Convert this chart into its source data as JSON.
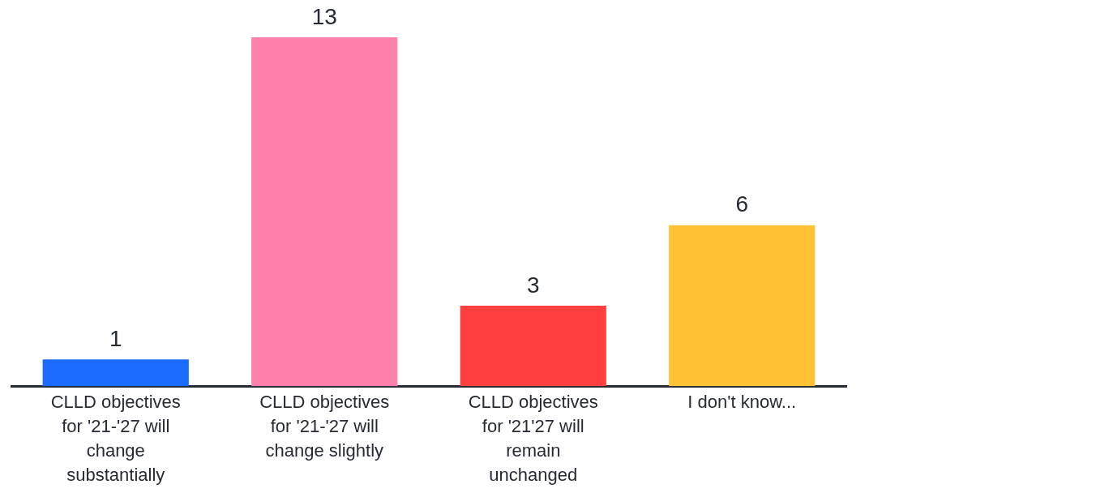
{
  "chart_data": {
    "type": "bar",
    "categories": [
      "CLLD objectives for '21-'27 will change substantially",
      "CLLD objectives for '21-'27 will change slightly",
      "CLLD objectives for '21'27 will remain unchanged",
      "I don't know..."
    ],
    "values": [
      1,
      13,
      3,
      6
    ],
    "colors": [
      "#196cff",
      "#ff80ab",
      "#ff403f",
      "#ffc335"
    ],
    "ylim": [
      0,
      13
    ],
    "data_labels": true,
    "grid": false,
    "legend": false
  }
}
